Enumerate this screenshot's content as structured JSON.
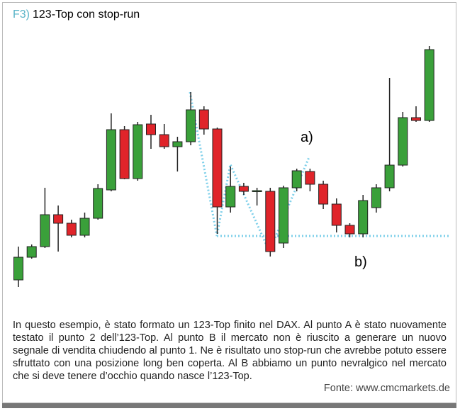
{
  "header": {
    "label": "F3)",
    "title": "123-Top con stop-run"
  },
  "chart_data": {
    "type": "candlestick",
    "open": [
      25,
      57,
      72,
      117,
      105,
      88,
      112,
      152,
      237,
      168,
      245,
      230,
      213,
      220,
      265,
      238,
      128,
      157,
      150,
      150,
      77,
      155,
      178,
      160,
      132,
      102,
      90,
      127,
      155,
      187,
      254,
      250
    ],
    "high": [
      72,
      75,
      155,
      130,
      110,
      120,
      160,
      260,
      242,
      248,
      258,
      245,
      227,
      290,
      270,
      240,
      185,
      162,
      155,
      155,
      158,
      182,
      182,
      165,
      140,
      105,
      145,
      160,
      310,
      262,
      270,
      355
    ],
    "low": [
      15,
      55,
      70,
      65,
      85,
      85,
      110,
      150,
      167,
      165,
      210,
      210,
      178,
      215,
      230,
      90,
      120,
      145,
      130,
      58,
      70,
      150,
      150,
      125,
      92,
      85,
      85,
      120,
      150,
      185,
      248,
      248
    ],
    "close": [
      57,
      72,
      117,
      105,
      88,
      112,
      154,
      237,
      168,
      244,
      230,
      213,
      220,
      265,
      238,
      128,
      157,
      150,
      151,
      65,
      155,
      179,
      160,
      132,
      102,
      90,
      137,
      155,
      187,
      254,
      250,
      350
    ],
    "up_color": "#3aa03a",
    "down_color": "#e0242a",
    "ylim": [
      0,
      380
    ],
    "annotations": [
      "a)",
      "b)"
    ]
  },
  "caption": "In questo esempio, è stato formato un 123-Top finito nel DAX. Al punto A è stato nuovamente testato il punto 2 dell’123-Top. Al punto B il mercato non è riuscito a generare un nuovo segnale di vendita chiudendo al punto 1. Ne è risultato uno stop-run che avrebbe potuto essere sfruttato con una posizione long ben coperta. Al B abbiamo un punto nevralgico nel mercato che si deve tenere d’occhio quando nasce l’123-Top.",
  "source": "Fonte: www.cmcmarkets.de"
}
